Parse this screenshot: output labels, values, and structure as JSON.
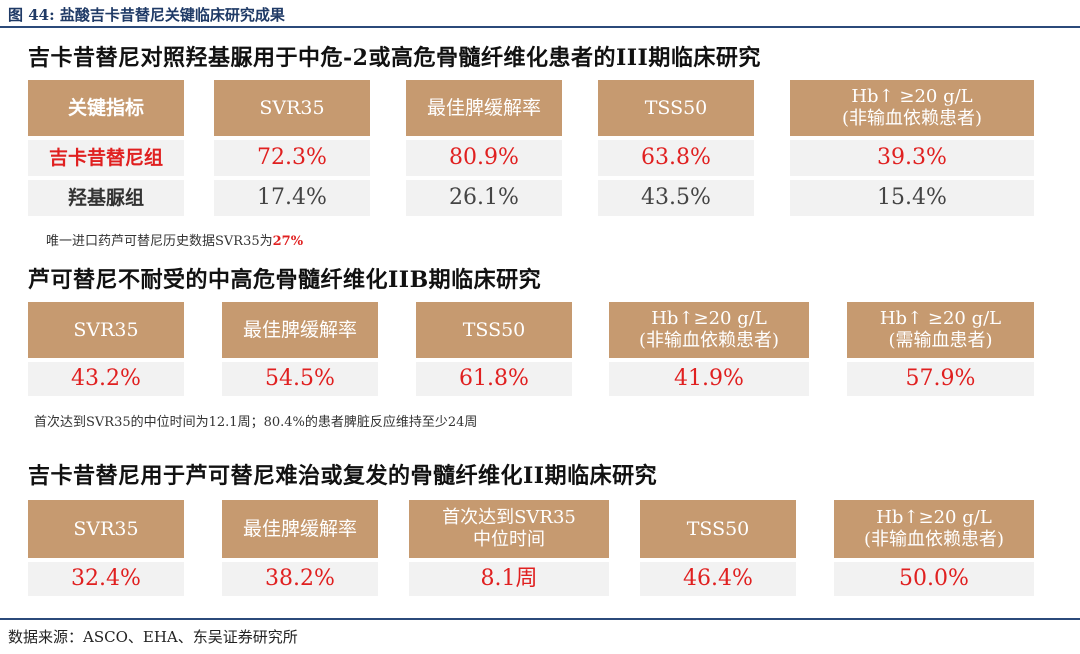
{
  "figure_title": "图 44:  盐酸吉卡昔替尼关键临床研究成果",
  "source": "数据来源：ASCO、EHA、东吴证券研究所",
  "section1": {
    "title": "吉卡昔替尼对照羟基脲用于中危-2或高危骨髓纤维化患者的III期临床研究",
    "key_label": "关键指标",
    "headers": [
      "SVR35",
      "最佳脾缓解率",
      "TSS50",
      "Hb↑ ≥20 g/L",
      "(非输血依赖患者)"
    ],
    "row1_label": "吉卡昔替尼组",
    "row1": [
      "72.3%",
      "80.9%",
      "63.8%",
      "39.3%"
    ],
    "row2_label": "羟基脲组",
    "row2": [
      "17.4%",
      "26.1%",
      "43.5%",
      "15.4%"
    ],
    "note_prefix": "唯一进口药芦可替尼历史数据SVR35为",
    "note_highlight": "27%"
  },
  "section2": {
    "title": "芦可替尼不耐受的中高危骨髓纤维化IIB期临床研究",
    "headers": [
      "SVR35",
      "最佳脾缓解率",
      "TSS50",
      "Hb↑≥20 g/L",
      "(非输血依赖患者)",
      "Hb↑ ≥20 g/L",
      "(需输血患者)"
    ],
    "values": [
      "43.2%",
      "54.5%",
      "61.8%",
      "41.9%",
      "57.9%"
    ],
    "note": "首次达到SVR35的中位时间为12.1周；80.4%的患者脾脏反应维持至少24周"
  },
  "section3": {
    "title": "吉卡昔替尼用于芦可替尼难治或复发的骨髓纤维化II期临床研究",
    "headers": [
      "SVR35",
      "最佳脾缓解率",
      "首次达到SVR35",
      "中位时间",
      "TSS50",
      "Hb↑≥20 g/L",
      "(非输血依赖患者)"
    ],
    "values": [
      "32.4%",
      "38.2%",
      "8.1周",
      "46.4%",
      "50.0%"
    ]
  },
  "colors": {
    "header_bg": "#c69a70",
    "value_bg": "#f2f2f2",
    "highlight_red": "#e02020",
    "rule_blue": "#2b4a7a"
  }
}
